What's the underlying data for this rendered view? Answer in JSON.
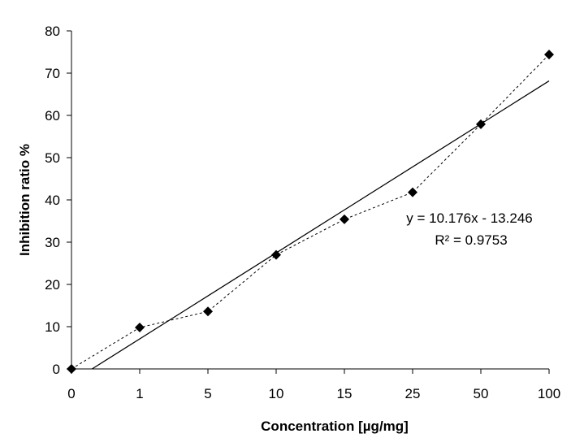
{
  "chart_data": {
    "type": "line",
    "title": "",
    "xlabel": "Concentration [µg/mg]",
    "ylabel": "Inhibition ratio %",
    "categories": [
      "0",
      "1",
      "5",
      "10",
      "15",
      "25",
      "50",
      "100"
    ],
    "series": [
      {
        "values": [
          0,
          9.8,
          13.6,
          27.0,
          35.4,
          41.8,
          57.9,
          74.4
        ],
        "marker": "diamond",
        "line_style": "dashed"
      }
    ],
    "trendline": {
      "type": "linear",
      "slope": 10.176,
      "intercept": -13.246,
      "equation": "y = 10.176x - 13.246",
      "r_squared_label": "R² = 0.9753"
    },
    "ylim": [
      0,
      80
    ],
    "yticks": [
      "0",
      "10",
      "20",
      "30",
      "40",
      "50",
      "60",
      "70",
      "80"
    ],
    "grid": false,
    "legend": "none",
    "colors": {
      "series": "#000000",
      "trendline": "#000000",
      "axis": "#000000"
    }
  }
}
